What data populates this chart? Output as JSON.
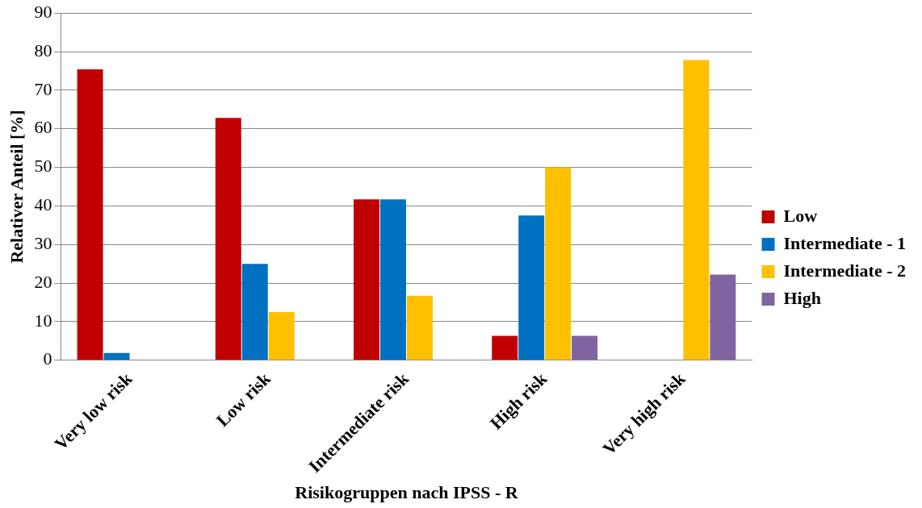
{
  "chart_data": {
    "type": "bar",
    "xlabel": "Risikogruppen nach IPSS - R",
    "ylabel": "Relativer Anteil [%]",
    "categories": [
      "Very low risk",
      "Low risk",
      "Intermediate risk",
      "High risk",
      "Very high risk"
    ],
    "series": [
      {
        "name": "Low",
        "color": "#c00000",
        "values": [
          75.4,
          62.8,
          41.7,
          6.3,
          0
        ]
      },
      {
        "name": "Intermediate - 1",
        "color": "#0070c0",
        "values": [
          1.9,
          25,
          41.7,
          37.5,
          0
        ]
      },
      {
        "name": "Intermediate - 2",
        "color": "#ffc000",
        "values": [
          0,
          12.5,
          16.7,
          50,
          77.8
        ]
      },
      {
        "name": "High",
        "color": "#8064a2",
        "values": [
          0,
          0,
          0,
          6.3,
          22.2
        ]
      }
    ],
    "ylim": [
      0,
      90
    ],
    "yticks": [
      0,
      10,
      20,
      30,
      40,
      50,
      60,
      70,
      80,
      90
    ],
    "grid": "y",
    "legend": "right"
  }
}
